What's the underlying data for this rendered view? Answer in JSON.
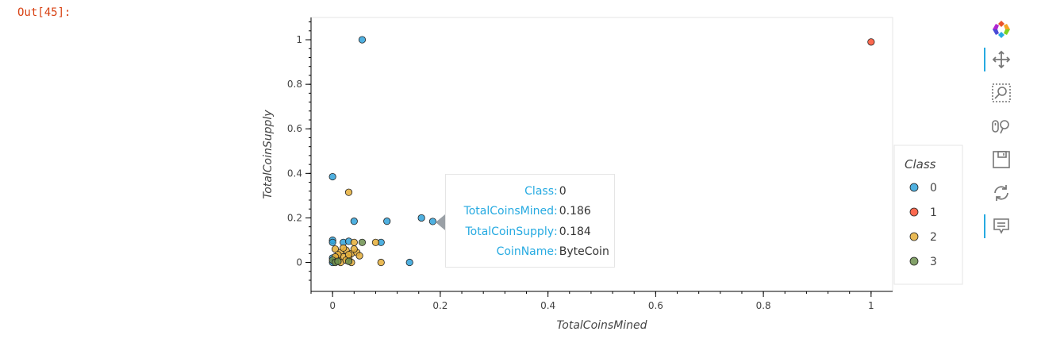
{
  "cell": {
    "output_prompt": "Out[45]:"
  },
  "chart_data": {
    "type": "scatter",
    "xlabel": "TotalCoinsMined",
    "ylabel": "TotalCoinSupply",
    "xlim": [
      -0.04,
      1.04
    ],
    "ylim": [
      -0.13,
      1.1
    ],
    "x_ticks": [
      0,
      0.2,
      0.4,
      0.6,
      0.8,
      1
    ],
    "x_tick_labels": [
      "0",
      "0.2",
      "0.4",
      "0.6",
      "0.8",
      "1"
    ],
    "y_ticks": [
      0,
      0.2,
      0.4,
      0.6,
      0.8,
      1
    ],
    "y_tick_labels": [
      "0",
      "0.2",
      "0.4",
      "0.6",
      "0.8",
      "1"
    ],
    "grid": false,
    "legend": {
      "title": "Class",
      "placement": "right",
      "entries": [
        {
          "label": "0",
          "color": "#30a2da"
        },
        {
          "label": "1",
          "color": "#fc4f30"
        },
        {
          "label": "2",
          "color": "#e5ae38"
        },
        {
          "label": "3",
          "color": "#6d904f"
        }
      ]
    },
    "series": [
      {
        "name": "0",
        "color": "#30a2da",
        "points": [
          [
            0.055,
            1.0
          ],
          [
            0.0,
            0.385
          ],
          [
            0.04,
            0.185
          ],
          [
            0.101,
            0.185
          ],
          [
            0.165,
            0.2
          ],
          [
            0.186,
            0.184
          ],
          [
            0.09,
            0.09
          ],
          [
            0.143,
            0.0
          ],
          [
            0.0,
            0.1
          ],
          [
            0.0,
            0.09
          ],
          [
            0.02,
            0.09
          ],
          [
            0.03,
            0.095
          ],
          [
            0.0,
            0.02
          ],
          [
            0.0,
            0.0
          ]
        ]
      },
      {
        "name": "1",
        "color": "#fc4f30",
        "points": [
          [
            1.0,
            0.99
          ]
        ]
      },
      {
        "name": "2",
        "color": "#e5ae38",
        "points": [
          [
            0.03,
            0.315
          ],
          [
            0.04,
            0.09
          ],
          [
            0.08,
            0.09
          ],
          [
            0.09,
            0.0
          ],
          [
            0.005,
            0.06
          ],
          [
            0.015,
            0.045
          ],
          [
            0.025,
            0.055
          ],
          [
            0.035,
            0.04
          ],
          [
            0.045,
            0.045
          ],
          [
            0.05,
            0.03
          ],
          [
            0.02,
            0.025
          ],
          [
            0.03,
            0.02
          ],
          [
            0.01,
            0.015
          ],
          [
            0.005,
            0.005
          ],
          [
            0.015,
            0.0
          ],
          [
            0.025,
            0.01
          ],
          [
            0.035,
            0.0
          ],
          [
            0.04,
            0.06
          ],
          [
            0.02,
            0.065
          ],
          [
            0.01,
            0.035
          ],
          [
            0.03,
            0.035
          ],
          [
            0.005,
            0.025
          ]
        ]
      },
      {
        "name": "3",
        "color": "#6d904f",
        "points": [
          [
            0.055,
            0.09
          ],
          [
            0.0,
            0.01
          ],
          [
            0.005,
            0.0
          ],
          [
            0.01,
            0.005
          ],
          [
            0.03,
            0.005
          ]
        ]
      }
    ]
  },
  "tooltip": {
    "rows": [
      {
        "key": "Class",
        "value": "0"
      },
      {
        "key": "TotalCoinsMined",
        "value": "0.186"
      },
      {
        "key": "TotalCoinSupply",
        "value": "0.184"
      },
      {
        "key": "CoinName",
        "value": "ByteCoin"
      }
    ]
  },
  "toolbar": {
    "accent_color": "#26aae1",
    "tools": [
      {
        "name": "bokeh-logo-icon",
        "active": false
      },
      {
        "name": "pan-icon",
        "active": true
      },
      {
        "name": "box-zoom-icon",
        "active": false
      },
      {
        "name": "wheel-zoom-icon",
        "active": false
      },
      {
        "name": "save-icon",
        "active": false
      },
      {
        "name": "reset-icon",
        "active": false
      },
      {
        "name": "hover-icon",
        "active": true
      }
    ]
  }
}
